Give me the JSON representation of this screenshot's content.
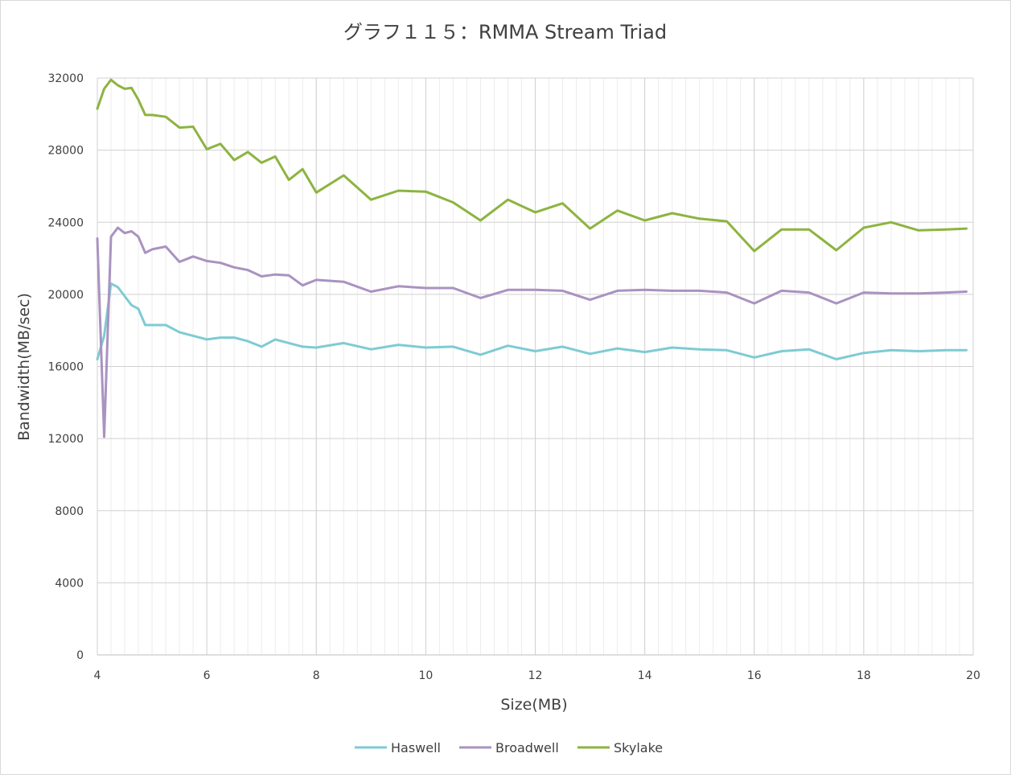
{
  "chart_data": {
    "type": "line",
    "title": "グラフ１１５：RMMA Stream Triad",
    "xlabel": "Size(MB)",
    "ylabel": "Bandwidth(MB/sec)",
    "xlim": [
      4,
      20
    ],
    "ylim": [
      0,
      32000
    ],
    "x_ticks": [
      4,
      6,
      8,
      10,
      12,
      14,
      16,
      18,
      20
    ],
    "y_ticks": [
      0,
      4000,
      8000,
      12000,
      16000,
      20000,
      24000,
      28000,
      32000
    ],
    "grid": true,
    "legend_position": "bottom",
    "x": [
      4.0,
      4.125,
      4.25,
      4.375,
      4.5,
      4.625,
      4.75,
      4.875,
      5.0,
      5.25,
      5.5,
      5.75,
      6.0,
      6.25,
      6.5,
      6.75,
      7.0,
      7.25,
      7.5,
      7.75,
      8.0,
      8.5,
      9.0,
      9.5,
      10.0,
      10.5,
      11.0,
      11.5,
      12.0,
      12.5,
      13.0,
      13.5,
      14.0,
      14.5,
      15.0,
      15.5,
      16.0,
      16.5,
      17.0,
      17.5,
      18.0,
      18.5,
      19.0,
      19.5,
      19.875
    ],
    "series": [
      {
        "name": "Haswell",
        "color": "#7ecbd3",
        "values": [
          16400,
          17700,
          20600,
          20400,
          19900,
          19400,
          19200,
          18300,
          18300,
          18300,
          17900,
          17700,
          17500,
          17600,
          17600,
          17400,
          17100,
          17500,
          17300,
          17100,
          17050,
          17300,
          16950,
          17200,
          17050,
          17100,
          16650,
          17150,
          16850,
          17100,
          16700,
          17000,
          16800,
          17050,
          16950,
          16900,
          16500,
          16850,
          16950,
          16400,
          16750,
          16900,
          16850,
          16900,
          16900
        ]
      },
      {
        "name": "Broadwell",
        "color": "#a993c1",
        "values": [
          23100,
          12100,
          23200,
          23700,
          23400,
          23500,
          23200,
          22300,
          22500,
          22650,
          21800,
          22100,
          21850,
          21750,
          21500,
          21350,
          21000,
          21100,
          21050,
          20500,
          20800,
          20700,
          20150,
          20450,
          20350,
          20350,
          19800,
          20250,
          20250,
          20200,
          19700,
          20200,
          20250,
          20200,
          20200,
          20100,
          19500,
          20200,
          20100,
          19500,
          20100,
          20050,
          20050,
          20100,
          20150
        ]
      },
      {
        "name": "Skylake",
        "color": "#8db440",
        "values": [
          30300,
          31400,
          31900,
          31600,
          31400,
          31450,
          30800,
          29950,
          29950,
          29850,
          29250,
          29300,
          28050,
          28350,
          27450,
          27900,
          27300,
          27650,
          26350,
          26950,
          25650,
          26600,
          25250,
          25750,
          25700,
          25100,
          24100,
          25250,
          24550,
          25050,
          23650,
          24650,
          24100,
          24500,
          24200,
          24050,
          22400,
          23600,
          23600,
          22450,
          23700,
          24000,
          23550,
          23600,
          23650
        ]
      }
    ]
  }
}
